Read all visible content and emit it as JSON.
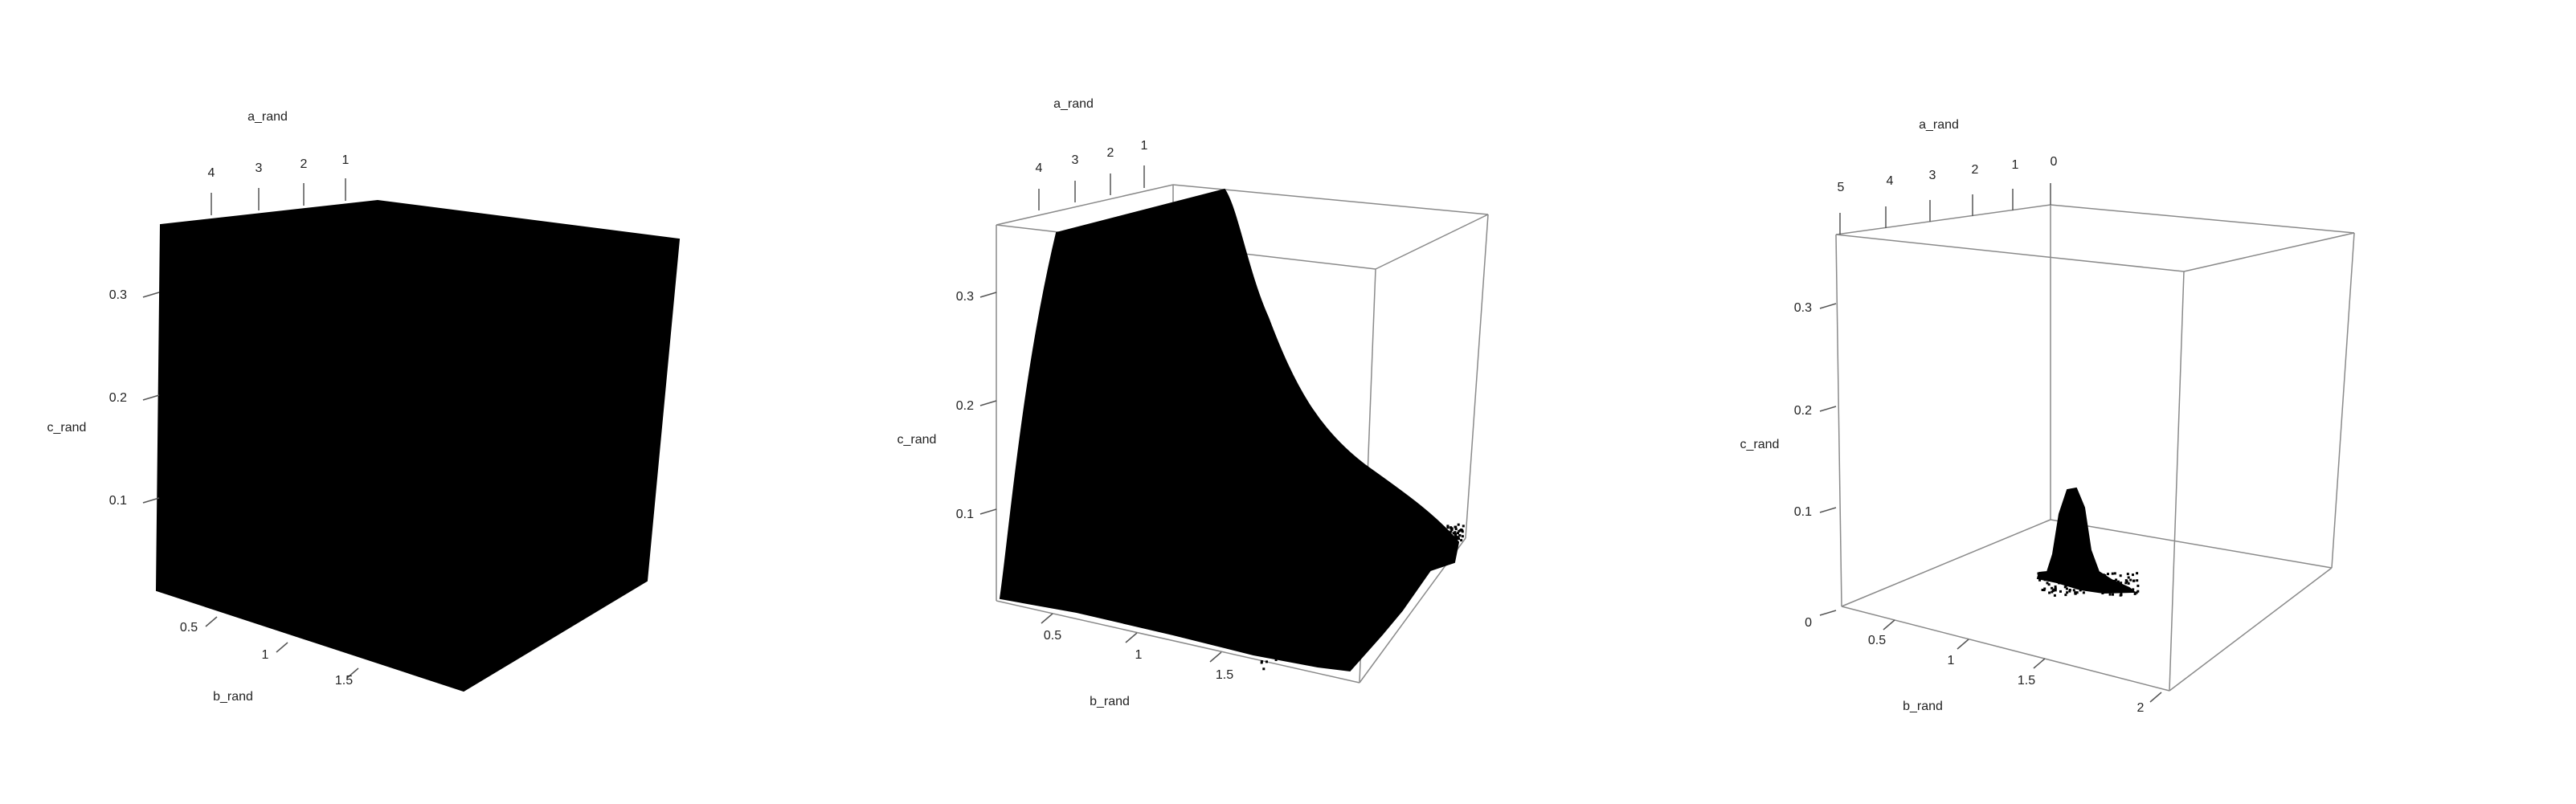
{
  "colors": {
    "background": "#ffffff",
    "points": "#000000",
    "box": "#8a8a8a",
    "text": "#222222"
  },
  "chart_data": [
    {
      "type": "scatter",
      "kind": "3d-scatter",
      "xlabel": "b_rand",
      "ylabel": "a_rand",
      "zlabel": "c_rand",
      "x_ticks": [
        "0.5",
        "1",
        "1.5"
      ],
      "y_ticks": [
        "4",
        "3",
        "2",
        "1"
      ],
      "z_ticks": [
        "0.3",
        "0.2",
        "0.1"
      ],
      "xlim": [
        0,
        2
      ],
      "ylim": [
        0,
        5
      ],
      "zlim": [
        0,
        0.36
      ],
      "box": false,
      "points_shape": "uniform-fill"
    },
    {
      "type": "scatter",
      "kind": "3d-scatter",
      "xlabel": "b_rand",
      "ylabel": "a_rand",
      "zlabel": "c_rand",
      "x_ticks": [
        "0.5",
        "1",
        "1.5"
      ],
      "y_ticks": [
        "4",
        "3",
        "2",
        "1"
      ],
      "z_ticks": [
        "0.3",
        "0.2",
        "0.1"
      ],
      "xlim": [
        0,
        2
      ],
      "ylim": [
        0,
        5
      ],
      "zlim": [
        0,
        0.36
      ],
      "box": true,
      "points_shape": "decaying-in-b"
    },
    {
      "type": "scatter",
      "kind": "3d-scatter",
      "xlabel": "b_rand",
      "ylabel": "a_rand",
      "zlabel": "c_rand",
      "x_ticks": [
        "0.5",
        "1",
        "1.5",
        "2"
      ],
      "y_ticks": [
        "5",
        "4",
        "3",
        "2",
        "1",
        "0"
      ],
      "z_ticks": [
        "0.3",
        "0.2",
        "0.1",
        "0"
      ],
      "xlim": [
        0,
        2
      ],
      "ylim": [
        0,
        5
      ],
      "zlim": [
        0,
        0.36
      ],
      "box": true,
      "points_shape": "narrow-peak"
    }
  ]
}
